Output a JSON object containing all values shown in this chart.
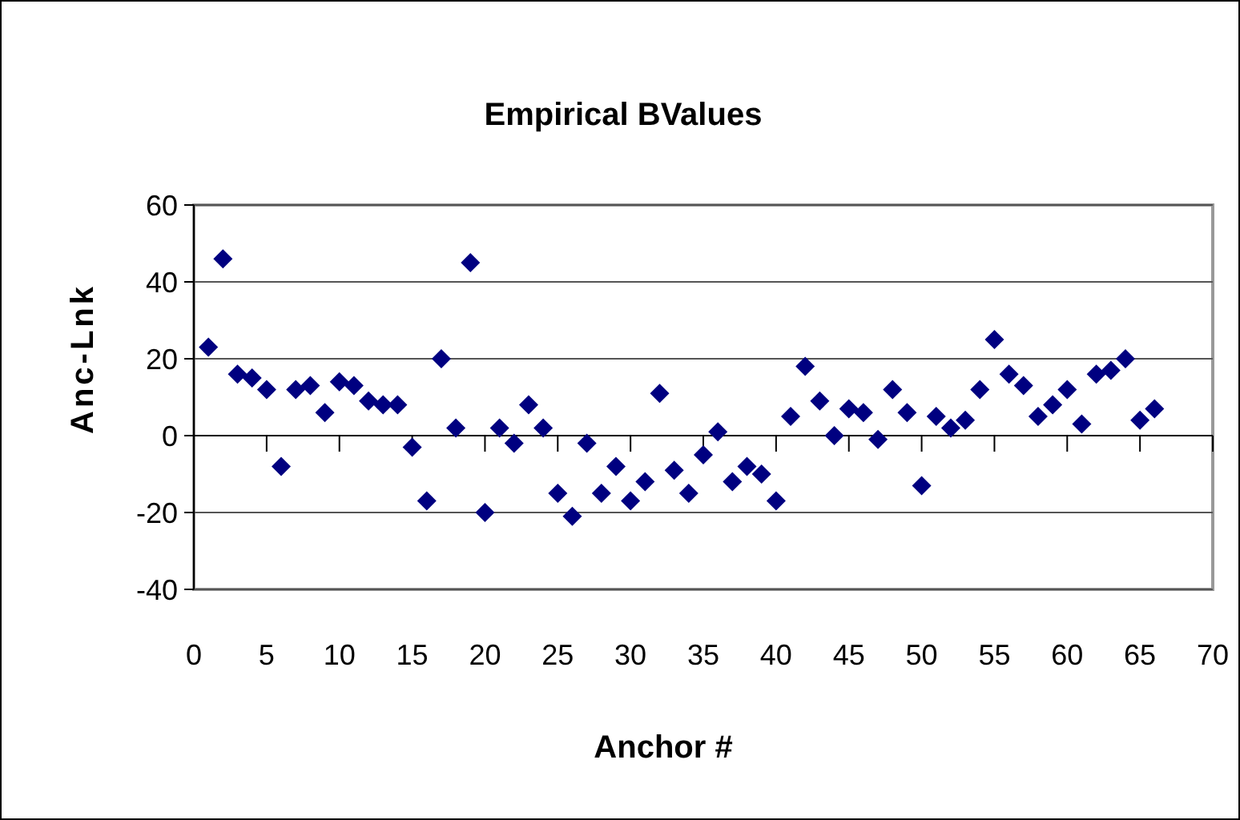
{
  "chart_data": {
    "type": "scatter",
    "title": "Empirical BValues",
    "xlabel": "Anchor #",
    "ylabel": "Anc-Lnk",
    "x": [
      1,
      2,
      3,
      4,
      5,
      6,
      7,
      8,
      9,
      10,
      11,
      12,
      13,
      14,
      15,
      16,
      17,
      18,
      19,
      20,
      21,
      22,
      23,
      24,
      25,
      26,
      27,
      28,
      29,
      30,
      31,
      32,
      33,
      34,
      35,
      36,
      37,
      38,
      39,
      40,
      41,
      42,
      43,
      44,
      45,
      46,
      47,
      48,
      49,
      50,
      51,
      52,
      53,
      54,
      55,
      56,
      57,
      58,
      59,
      60,
      61,
      62,
      63,
      64,
      65,
      66
    ],
    "series": [
      {
        "color": "#000080",
        "values": [
          23,
          46,
          16,
          15,
          12,
          -8,
          12,
          13,
          6,
          14,
          13,
          9,
          8,
          8,
          -3,
          -17,
          20,
          2,
          45,
          -20,
          2,
          -2,
          8,
          2,
          -15,
          -21,
          -2,
          -15,
          -8,
          -17,
          -12,
          11,
          -9,
          -15,
          -5,
          1,
          -12,
          -8,
          -10,
          -17,
          5,
          18,
          9,
          0,
          7,
          6,
          -1,
          12,
          6,
          -13,
          5,
          2,
          4,
          12,
          25,
          16,
          13,
          5,
          8,
          12,
          3,
          16,
          17,
          20,
          4,
          7
        ]
      }
    ],
    "xlim": [
      0,
      70
    ],
    "xticks": [
      0,
      5,
      10,
      15,
      20,
      25,
      30,
      35,
      40,
      45,
      50,
      55,
      60,
      65,
      70
    ],
    "ylim": [
      -40,
      60
    ],
    "yticks": [
      -40,
      -20,
      0,
      20,
      40,
      60
    ],
    "grid": "y",
    "marker": "diamond"
  }
}
